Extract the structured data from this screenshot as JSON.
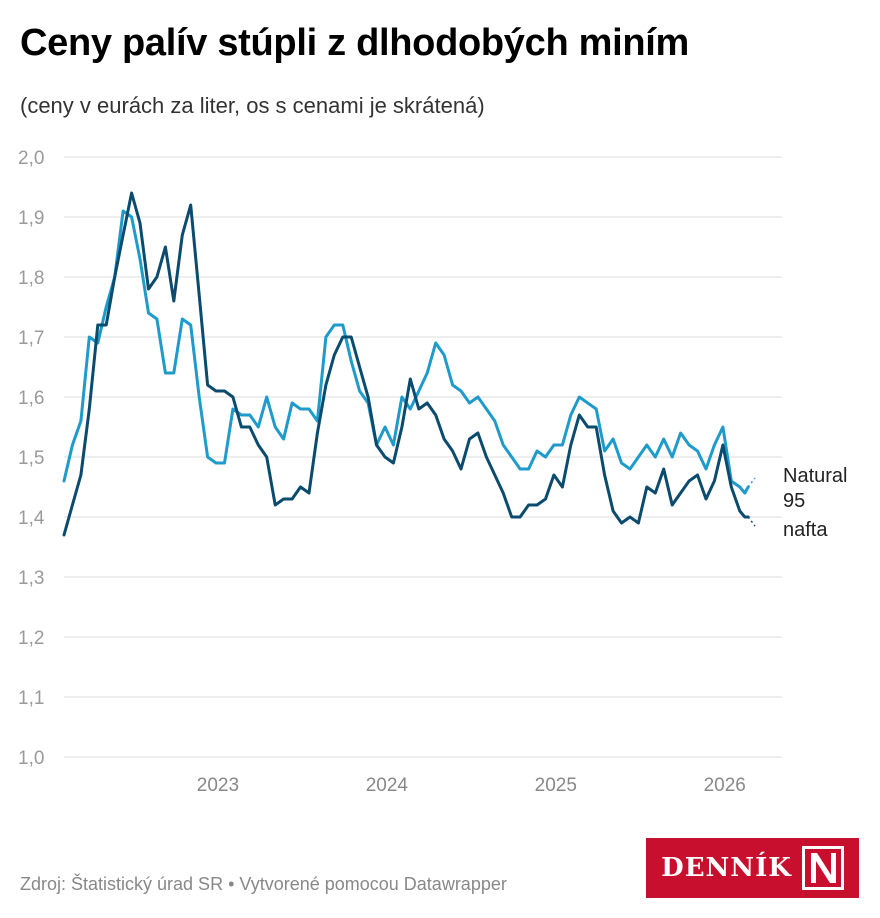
{
  "title": "Ceny palív stúpli z dlhodobých miním",
  "subtitle": "(ceny v eurách za liter, os s cenami je skrátená)",
  "footer": "Zdroj: Štatistický úrad SR • Vytvorené pomocou Datawrapper",
  "logo": {
    "text": "DENNÍK",
    "letter": "N",
    "bg_color": "#c8102e"
  },
  "chart_data": {
    "type": "line",
    "title": "Ceny palív stúpli z dlhodobých miním",
    "ylim": [
      1.0,
      2.0
    ],
    "y_ticks": [
      "2,0",
      "1,9",
      "1,8",
      "1,7",
      "1,6",
      "1,5",
      "1,4",
      "1,3",
      "1,2",
      "1,1",
      "1,0"
    ],
    "x_ticks": [
      "2023",
      "2024",
      "2025",
      "2026"
    ],
    "grid": true,
    "series": [
      {
        "name": "Natural 95",
        "color": "#1e9bca",
        "points": [
          [
            2022.0,
            1.46
          ],
          [
            2022.05,
            1.52
          ],
          [
            2022.1,
            1.56
          ],
          [
            2022.15,
            1.7
          ],
          [
            2022.2,
            1.69
          ],
          [
            2022.25,
            1.75
          ],
          [
            2022.3,
            1.8
          ],
          [
            2022.35,
            1.91
          ],
          [
            2022.4,
            1.9
          ],
          [
            2022.45,
            1.83
          ],
          [
            2022.5,
            1.74
          ],
          [
            2022.55,
            1.73
          ],
          [
            2022.6,
            1.64
          ],
          [
            2022.65,
            1.64
          ],
          [
            2022.7,
            1.73
          ],
          [
            2022.75,
            1.72
          ],
          [
            2022.8,
            1.6
          ],
          [
            2022.85,
            1.5
          ],
          [
            2022.9,
            1.49
          ],
          [
            2022.95,
            1.49
          ],
          [
            2023.0,
            1.58
          ],
          [
            2023.05,
            1.57
          ],
          [
            2023.1,
            1.57
          ],
          [
            2023.15,
            1.55
          ],
          [
            2023.2,
            1.6
          ],
          [
            2023.25,
            1.55
          ],
          [
            2023.3,
            1.53
          ],
          [
            2023.35,
            1.59
          ],
          [
            2023.4,
            1.58
          ],
          [
            2023.45,
            1.58
          ],
          [
            2023.5,
            1.56
          ],
          [
            2023.55,
            1.7
          ],
          [
            2023.6,
            1.72
          ],
          [
            2023.65,
            1.72
          ],
          [
            2023.7,
            1.66
          ],
          [
            2023.75,
            1.61
          ],
          [
            2023.8,
            1.59
          ],
          [
            2023.85,
            1.52
          ],
          [
            2023.9,
            1.55
          ],
          [
            2023.95,
            1.52
          ],
          [
            2024.0,
            1.6
          ],
          [
            2024.05,
            1.58
          ],
          [
            2024.1,
            1.61
          ],
          [
            2024.15,
            1.64
          ],
          [
            2024.2,
            1.69
          ],
          [
            2024.25,
            1.67
          ],
          [
            2024.3,
            1.62
          ],
          [
            2024.35,
            1.61
          ],
          [
            2024.4,
            1.59
          ],
          [
            2024.45,
            1.6
          ],
          [
            2024.5,
            1.58
          ],
          [
            2024.55,
            1.56
          ],
          [
            2024.6,
            1.52
          ],
          [
            2024.65,
            1.5
          ],
          [
            2024.7,
            1.48
          ],
          [
            2024.75,
            1.48
          ],
          [
            2024.8,
            1.51
          ],
          [
            2024.85,
            1.5
          ],
          [
            2024.9,
            1.52
          ],
          [
            2024.95,
            1.52
          ],
          [
            2025.0,
            1.57
          ],
          [
            2025.05,
            1.6
          ],
          [
            2025.1,
            1.59
          ],
          [
            2025.15,
            1.58
          ],
          [
            2025.2,
            1.51
          ],
          [
            2025.25,
            1.53
          ],
          [
            2025.3,
            1.49
          ],
          [
            2025.35,
            1.48
          ],
          [
            2025.4,
            1.5
          ],
          [
            2025.45,
            1.52
          ],
          [
            2025.5,
            1.5
          ],
          [
            2025.55,
            1.53
          ],
          [
            2025.6,
            1.5
          ],
          [
            2025.65,
            1.54
          ],
          [
            2025.7,
            1.52
          ],
          [
            2025.75,
            1.51
          ],
          [
            2025.8,
            1.48
          ],
          [
            2025.85,
            1.52
          ],
          [
            2025.9,
            1.55
          ],
          [
            2025.95,
            1.46
          ],
          [
            2026.0,
            1.45
          ],
          [
            2026.03,
            1.44
          ],
          [
            2026.05,
            1.45
          ]
        ],
        "end_dotted": [
          [
            2026.05,
            1.45
          ],
          [
            2026.09,
            1.465
          ]
        ]
      },
      {
        "name": "nafta",
        "color": "#0a4b6e",
        "points": [
          [
            2022.0,
            1.37
          ],
          [
            2022.05,
            1.42
          ],
          [
            2022.1,
            1.47
          ],
          [
            2022.15,
            1.58
          ],
          [
            2022.2,
            1.72
          ],
          [
            2022.25,
            1.72
          ],
          [
            2022.3,
            1.8
          ],
          [
            2022.35,
            1.87
          ],
          [
            2022.4,
            1.94
          ],
          [
            2022.45,
            1.89
          ],
          [
            2022.5,
            1.78
          ],
          [
            2022.55,
            1.8
          ],
          [
            2022.6,
            1.85
          ],
          [
            2022.65,
            1.76
          ],
          [
            2022.7,
            1.87
          ],
          [
            2022.75,
            1.92
          ],
          [
            2022.8,
            1.77
          ],
          [
            2022.85,
            1.62
          ],
          [
            2022.9,
            1.61
          ],
          [
            2022.95,
            1.61
          ],
          [
            2023.0,
            1.6
          ],
          [
            2023.05,
            1.55
          ],
          [
            2023.1,
            1.55
          ],
          [
            2023.15,
            1.52
          ],
          [
            2023.2,
            1.5
          ],
          [
            2023.25,
            1.42
          ],
          [
            2023.3,
            1.43
          ],
          [
            2023.35,
            1.43
          ],
          [
            2023.4,
            1.45
          ],
          [
            2023.45,
            1.44
          ],
          [
            2023.5,
            1.54
          ],
          [
            2023.55,
            1.62
          ],
          [
            2023.6,
            1.67
          ],
          [
            2023.65,
            1.7
          ],
          [
            2023.7,
            1.7
          ],
          [
            2023.75,
            1.65
          ],
          [
            2023.8,
            1.6
          ],
          [
            2023.85,
            1.52
          ],
          [
            2023.9,
            1.5
          ],
          [
            2023.95,
            1.49
          ],
          [
            2024.0,
            1.55
          ],
          [
            2024.05,
            1.63
          ],
          [
            2024.1,
            1.58
          ],
          [
            2024.15,
            1.59
          ],
          [
            2024.2,
            1.57
          ],
          [
            2024.25,
            1.53
          ],
          [
            2024.3,
            1.51
          ],
          [
            2024.35,
            1.48
          ],
          [
            2024.4,
            1.53
          ],
          [
            2024.45,
            1.54
          ],
          [
            2024.5,
            1.5
          ],
          [
            2024.55,
            1.47
          ],
          [
            2024.6,
            1.44
          ],
          [
            2024.65,
            1.4
          ],
          [
            2024.7,
            1.4
          ],
          [
            2024.75,
            1.42
          ],
          [
            2024.8,
            1.42
          ],
          [
            2024.85,
            1.43
          ],
          [
            2024.9,
            1.47
          ],
          [
            2024.95,
            1.45
          ],
          [
            2025.0,
            1.52
          ],
          [
            2025.05,
            1.57
          ],
          [
            2025.1,
            1.55
          ],
          [
            2025.15,
            1.55
          ],
          [
            2025.2,
            1.47
          ],
          [
            2025.25,
            1.41
          ],
          [
            2025.3,
            1.39
          ],
          [
            2025.35,
            1.4
          ],
          [
            2025.4,
            1.39
          ],
          [
            2025.45,
            1.45
          ],
          [
            2025.5,
            1.44
          ],
          [
            2025.55,
            1.48
          ],
          [
            2025.6,
            1.42
          ],
          [
            2025.65,
            1.44
          ],
          [
            2025.7,
            1.46
          ],
          [
            2025.75,
            1.47
          ],
          [
            2025.8,
            1.43
          ],
          [
            2025.85,
            1.46
          ],
          [
            2025.9,
            1.52
          ],
          [
            2025.95,
            1.45
          ],
          [
            2026.0,
            1.41
          ],
          [
            2026.03,
            1.4
          ],
          [
            2026.05,
            1.4
          ]
        ],
        "end_dotted": [
          [
            2026.05,
            1.4
          ],
          [
            2026.09,
            1.385
          ]
        ]
      }
    ],
    "labels": [
      {
        "lines": [
          "Natural",
          "95"
        ],
        "series": "Natural 95"
      },
      {
        "lines": [
          "nafta"
        ],
        "series": "nafta"
      }
    ]
  }
}
